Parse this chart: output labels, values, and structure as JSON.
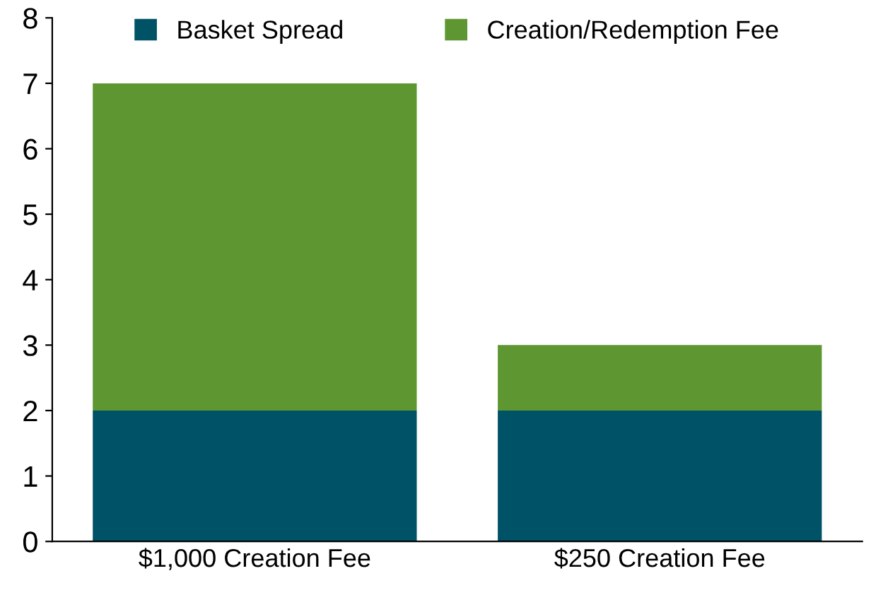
{
  "chart_data": {
    "type": "bar",
    "stacked": true,
    "categories": [
      "$1,000 Creation Fee",
      "$250 Creation Fee"
    ],
    "series": [
      {
        "name": "Basket Spread",
        "color": "#005266",
        "values": [
          2,
          2
        ]
      },
      {
        "name": "Creation/Redemption Fee",
        "color": "#5e9732",
        "values": [
          5,
          1
        ]
      }
    ],
    "ylim": [
      0,
      8
    ],
    "yticks": [
      0,
      1,
      2,
      3,
      4,
      5,
      6,
      7,
      8
    ],
    "grid": false,
    "legend": "top"
  }
}
